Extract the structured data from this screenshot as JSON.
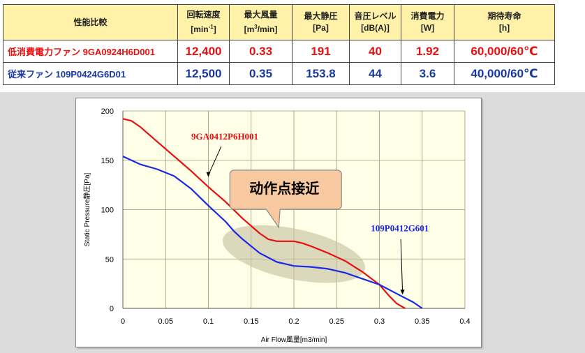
{
  "table": {
    "headers": [
      {
        "line1": "性能比較",
        "line2": ""
      },
      {
        "line1": "回転速度",
        "line2": "[min-1]"
      },
      {
        "line1": "最大風量",
        "line2": "[m3/min]"
      },
      {
        "line1": "最大静圧",
        "line2": "[Pa]"
      },
      {
        "line1": "音圧レベル",
        "line2": "[dB(A)]"
      },
      {
        "line1": "消費電力",
        "line2": "[W]"
      },
      {
        "line1": "期待寿命",
        "line2": "[h]"
      }
    ],
    "rows": [
      {
        "name": "低消費電力ファン 9GA0924H6D001",
        "speed": "12,400",
        "airflow": "0.33",
        "pressure": "191",
        "noise": "40",
        "power": "1.92",
        "life": "60,000/60℃",
        "color": "#e81010"
      },
      {
        "name": "従来ファン 109P0424G6D01",
        "speed": "12,500",
        "airflow": "0.35",
        "pressure": "153.8",
        "noise": "44",
        "power": "3.6",
        "life": "40,000/60℃",
        "color": "#1838a8"
      }
    ]
  },
  "chart_data": {
    "type": "line",
    "xlabel": "Air Flow風量[m3/min]",
    "ylabel": "Static Pressure静圧[Pa]",
    "xlim": [
      0,
      0.4
    ],
    "ylim": [
      0,
      200
    ],
    "x_ticks": [
      "0",
      "0.05",
      "0.1",
      "0.15",
      "0.2",
      "0.25",
      "0.3",
      "0.35",
      "0.4"
    ],
    "y_ticks": [
      "0",
      "50",
      "100",
      "150",
      "200"
    ],
    "grid": true,
    "annotation": "动作点接近",
    "series": [
      {
        "name": "9GA0412P6H001",
        "color": "#e81010",
        "x": [
          0,
          0.01,
          0.02,
          0.04,
          0.06,
          0.08,
          0.1,
          0.12,
          0.14,
          0.16,
          0.17,
          0.18,
          0.2,
          0.21,
          0.22,
          0.24,
          0.26,
          0.28,
          0.3,
          0.31,
          0.32,
          0.33
        ],
        "y": [
          192,
          190,
          184,
          169,
          154,
          139,
          123,
          108,
          91,
          76,
          70,
          68,
          68,
          66,
          63,
          56,
          48,
          37,
          24,
          14,
          5,
          0
        ]
      },
      {
        "name": "109P0412G601",
        "color": "#1a28e8",
        "x": [
          0,
          0.02,
          0.04,
          0.06,
          0.08,
          0.1,
          0.12,
          0.13,
          0.14,
          0.16,
          0.18,
          0.2,
          0.22,
          0.24,
          0.26,
          0.28,
          0.3,
          0.32,
          0.34,
          0.35
        ],
        "y": [
          154,
          146,
          141,
          134,
          121,
          104,
          88,
          78,
          70,
          56,
          47,
          43,
          42,
          40,
          36,
          30,
          24,
          15,
          6,
          0
        ]
      }
    ]
  }
}
